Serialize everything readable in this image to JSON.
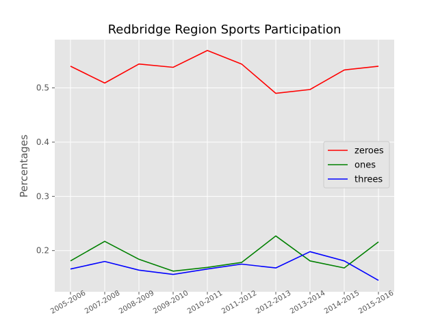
{
  "chart_data": {
    "type": "line",
    "title": "Redbridge Region Sports Participation",
    "xlabel": "",
    "ylabel": "Percentages",
    "categories": [
      "2005-2006",
      "2007-2008",
      "2008-2009",
      "2009-2010",
      "2010-2011",
      "2011-2012",
      "2012-2013",
      "2013-2014",
      "2014-2015",
      "2015-2016"
    ],
    "yticks": [
      0.2,
      0.3,
      0.4,
      0.5
    ],
    "ylim": [
      0.124,
      0.589
    ],
    "grid": true,
    "legend_position": "center-right",
    "series": [
      {
        "name": "zeroes",
        "color": "#ff0000",
        "values": [
          0.54,
          0.509,
          0.544,
          0.538,
          0.569,
          0.544,
          0.49,
          0.497,
          0.533,
          0.54
        ]
      },
      {
        "name": "ones",
        "color": "#008000",
        "values": [
          0.181,
          0.217,
          0.184,
          0.162,
          0.169,
          0.178,
          0.227,
          0.181,
          0.168,
          0.216
        ]
      },
      {
        "name": "threes",
        "color": "#0000ff",
        "values": [
          0.166,
          0.18,
          0.164,
          0.156,
          0.166,
          0.175,
          0.168,
          0.198,
          0.181,
          0.145
        ]
      }
    ]
  }
}
